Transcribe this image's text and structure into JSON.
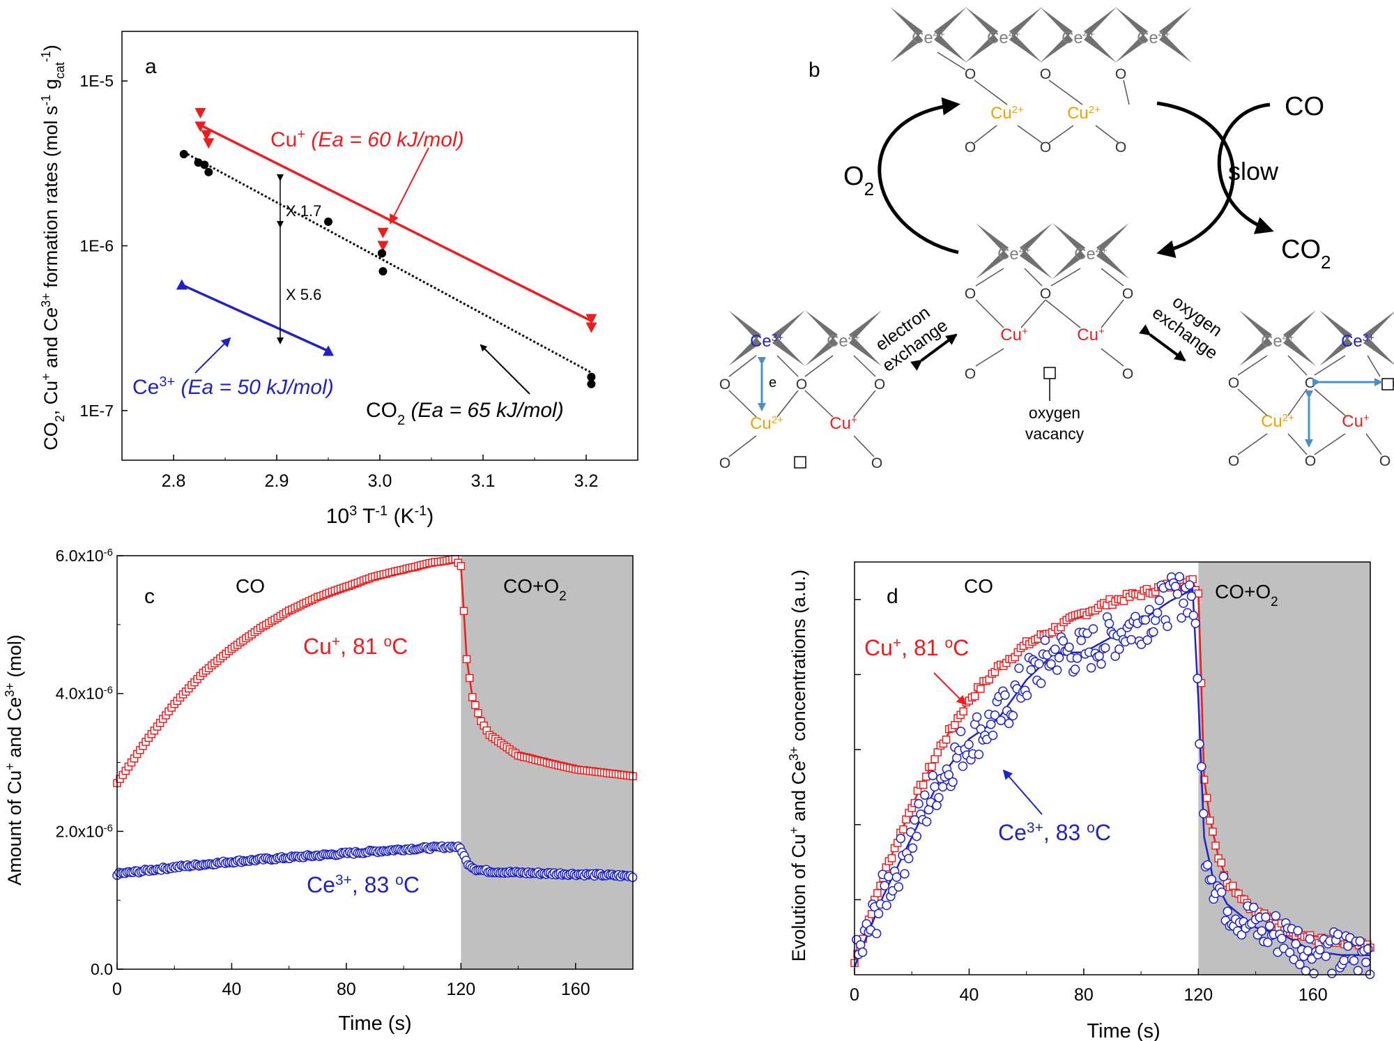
{
  "chart_data": [
    {
      "panel": "a",
      "type": "scatter",
      "panel_label": "a",
      "xlabel_base": "10",
      "xlabel_sup1": "3",
      "xlabel_mid": " T",
      "xlabel_sup2": "-1",
      "xlabel_tail": " (K",
      "xlabel_sup3": "-1",
      "xlabel_end": ")",
      "ylabel": "CO2, Cu+ and Ce3+ formation rates (mol s-1 gcat-1)",
      "xlim": [
        2.75,
        3.25
      ],
      "ylim": [
        5e-08,
        2e-05
      ],
      "yscale": "log",
      "xticks": [
        "2.8",
        "2.9",
        "3.0",
        "3.1",
        "3.2"
      ],
      "xtick_values": [
        2.8,
        2.9,
        3.0,
        3.1,
        3.2
      ],
      "yticks": [
        "1E-7",
        "1E-6",
        "1E-5"
      ],
      "ytick_values": [
        1e-07,
        1e-06,
        1e-05
      ],
      "series": [
        {
          "name": "Cu+",
          "color": "#ee1c1c",
          "marker": "triangle-down",
          "x": [
            2.826,
            2.826,
            2.832,
            2.834,
            3.003,
            3.003,
            3.205,
            3.205
          ],
          "y": [
            6.4e-06,
            5.3e-06,
            4.7e-06,
            4.2e-06,
            1.2e-06,
            1e-06,
            3.6e-07,
            3.2e-07
          ],
          "fit": [
            [
              2.826,
              5.4e-06
            ],
            [
              3.205,
              3.5e-07
            ]
          ]
        },
        {
          "name": "CO2",
          "color": "#000000",
          "marker": "circle",
          "x": [
            2.81,
            2.824,
            2.83,
            2.834,
            2.95,
            3.002,
            3.002,
            3.003,
            3.205,
            3.205
          ],
          "y": [
            3.6e-06,
            3.2e-06,
            3.1e-06,
            2.8e-06,
            1.4e-06,
            9e-07,
            9e-07,
            7e-07,
            1.6e-07,
            1.45e-07
          ],
          "fit": [
            [
              2.81,
              3.7e-06
            ],
            [
              3.205,
              1.7e-07
            ]
          ]
        },
        {
          "name": "Ce3+",
          "color": "#1f23c6",
          "marker": "triangle-up",
          "x": [
            2.808,
            2.95
          ],
          "y": [
            5.8e-07,
            2.3e-07
          ],
          "fit": [
            [
              2.808,
              5.8e-07
            ],
            [
              2.95,
              2.3e-07
            ]
          ]
        }
      ],
      "annotations": {
        "cu_label": "Cu",
        "cu_sup": "+",
        "cu_ea": " (Ea = 60 kJ/mol)",
        "co2_label": "CO",
        "co2_sub": "2",
        "co2_ea": " (Ea = 65 kJ/mol)",
        "ce_label": "Ce",
        "ce_sup": "3+",
        "ce_ea": " (Ea = 50 kJ/mol)",
        "ratio1": "X 1.7",
        "ratio2": "X 5.6"
      }
    },
    {
      "panel": "c",
      "type": "scatter",
      "panel_label": "c",
      "xlabel": "Time (s)",
      "ylabel": "Amount of Cu+ and Ce3+ (mol)",
      "xlim": [
        0,
        180
      ],
      "ylim": [
        0,
        6e-06
      ],
      "xticks": [
        "0",
        "40",
        "80",
        "120",
        "160"
      ],
      "xtick_values": [
        0,
        40,
        80,
        120,
        160
      ],
      "yticks": [
        "0.0",
        "2.0x10-6",
        "4.0x10-6",
        "6.0x10-6"
      ],
      "ytick_values": [
        0,
        2e-06,
        4e-06,
        6e-06
      ],
      "shaded_region": [
        120,
        180
      ],
      "region_labels": [
        "CO",
        "CO+O2"
      ],
      "series": [
        {
          "name": "Cu+, 81 oC",
          "color": "#ee1c1c",
          "marker": "square-open",
          "x": [
            0,
            10,
            20,
            30,
            40,
            50,
            60,
            70,
            80,
            90,
            100,
            110,
            118,
            120,
            121,
            122,
            124,
            127,
            130,
            135,
            140,
            150,
            160,
            170,
            180
          ],
          "y": [
            2.7e-06,
            3.3e-06,
            3.85e-06,
            4.3e-06,
            4.65e-06,
            4.95e-06,
            5.2e-06,
            5.4e-06,
            5.55e-06,
            5.7e-06,
            5.8e-06,
            5.9e-06,
            5.95e-06,
            5.85e-06,
            5.2e-06,
            4.5e-06,
            3.95e-06,
            3.6e-06,
            3.4e-06,
            3.25e-06,
            3.1e-06,
            3e-06,
            2.9e-06,
            2.85e-06,
            2.8e-06
          ]
        },
        {
          "name": "Ce3+, 83 oC",
          "color": "#1f23c6",
          "marker": "circle-open",
          "x": [
            0,
            20,
            40,
            60,
            80,
            100,
            118,
            120,
            122,
            125,
            130,
            140,
            160,
            180
          ],
          "y": [
            1.38e-06,
            1.48e-06,
            1.56e-06,
            1.62e-06,
            1.68e-06,
            1.74e-06,
            1.78e-06,
            1.75e-06,
            1.55e-06,
            1.45e-06,
            1.42e-06,
            1.4e-06,
            1.38e-06,
            1.35e-06
          ]
        }
      ]
    },
    {
      "panel": "d",
      "type": "scatter",
      "panel_label": "d",
      "xlabel": "Time (s)",
      "ylabel": "Evolution of Cu+ and Ce3+ concentrations (a.u.)",
      "xlim": [
        0,
        180
      ],
      "xticks": [
        "0",
        "40",
        "80",
        "120",
        "160"
      ],
      "xtick_values": [
        0,
        40,
        80,
        120,
        160
      ],
      "shaded_region": [
        120,
        180
      ],
      "region_labels": [
        "CO",
        "CO+O2"
      ],
      "series": [
        {
          "name": "Cu+, 81 oC",
          "color": "#ee1c1c",
          "marker": "square-open",
          "x": [
            0,
            10,
            20,
            30,
            40,
            50,
            60,
            70,
            80,
            90,
            100,
            110,
            118,
            120,
            121,
            122,
            124,
            127,
            130,
            140,
            150,
            160,
            170,
            180
          ],
          "y": [
            0.03,
            0.25,
            0.43,
            0.58,
            0.7,
            0.78,
            0.84,
            0.88,
            0.92,
            0.95,
            0.97,
            0.99,
            1.0,
            0.97,
            0.75,
            0.5,
            0.4,
            0.3,
            0.24,
            0.16,
            0.12,
            0.09,
            0.08,
            0.07
          ]
        },
        {
          "name": "Ce3+, 83 oC",
          "color": "#1f23c6",
          "marker": "circle-open",
          "x": [
            0,
            10,
            20,
            30,
            40,
            50,
            60,
            70,
            80,
            90,
            100,
            110,
            118,
            120,
            122,
            125,
            130,
            140,
            150,
            160,
            170,
            180
          ],
          "y": [
            0.02,
            0.2,
            0.35,
            0.5,
            0.6,
            0.65,
            0.75,
            0.82,
            0.82,
            0.86,
            0.9,
            0.95,
            0.98,
            0.7,
            0.35,
            0.25,
            0.18,
            0.12,
            0.1,
            0.06,
            0.05,
            0.05
          ]
        }
      ]
    }
  ],
  "panel_c_labels": {
    "ytick_prefix": [
      "0.0",
      "2.0x10",
      "4.0x10",
      "6.0x10"
    ],
    "ytick_exp": "-6",
    "cu_name": "Cu",
    "cu_sup": "+",
    "cu_temp": ", 81 ",
    "cu_deg": "o",
    "cu_unit": "C",
    "ce_name": "Ce",
    "ce_sup": "3+",
    "ce_temp": ", 83 ",
    "ce_deg": "o",
    "ce_unit": "C",
    "region_co": "CO",
    "region_coo2": "CO+O",
    "region_coo2_sub": "2"
  },
  "panel_d_labels": {
    "cu_name": "Cu",
    "cu_sup": "+",
    "cu_temp": ", 81 ",
    "cu_deg": "o",
    "cu_unit": "C",
    "ce_name": "Ce",
    "ce_sup": "3+",
    "ce_temp": ", 83 ",
    "ce_deg": "o",
    "ce_unit": "C",
    "region_co": "CO",
    "region_coo2": "CO+O",
    "region_coo2_sub": "2"
  },
  "panel_b": {
    "panel_label": "b",
    "ce4": "Ce",
    "ce4_sup": "4+",
    "ce3": "Ce",
    "ce3_sup": "3+",
    "cu2": "Cu",
    "cu2_sup": "2+",
    "cu1": "Cu",
    "cu1_sup": "+",
    "o": "O",
    "co": "CO",
    "slow": "slow",
    "o2": "O",
    "o2_sub": "2",
    "co2": "CO",
    "co2_sub": "2",
    "electron_exchange_1": "electron",
    "electron_exchange_2": "exchange",
    "oxygen_exchange_1": "oxygen",
    "oxygen_exchange_2": "exchange",
    "oxygen_vacancy_1": "oxygen",
    "oxygen_vacancy_2": "vacancy",
    "e": "e",
    "colors": {
      "ce4": "#808080",
      "ce3": "#1f23c6",
      "cu2": "#f0a000",
      "cu1": "#ee1c1c",
      "arrow_blue": "#4a90c8"
    }
  }
}
